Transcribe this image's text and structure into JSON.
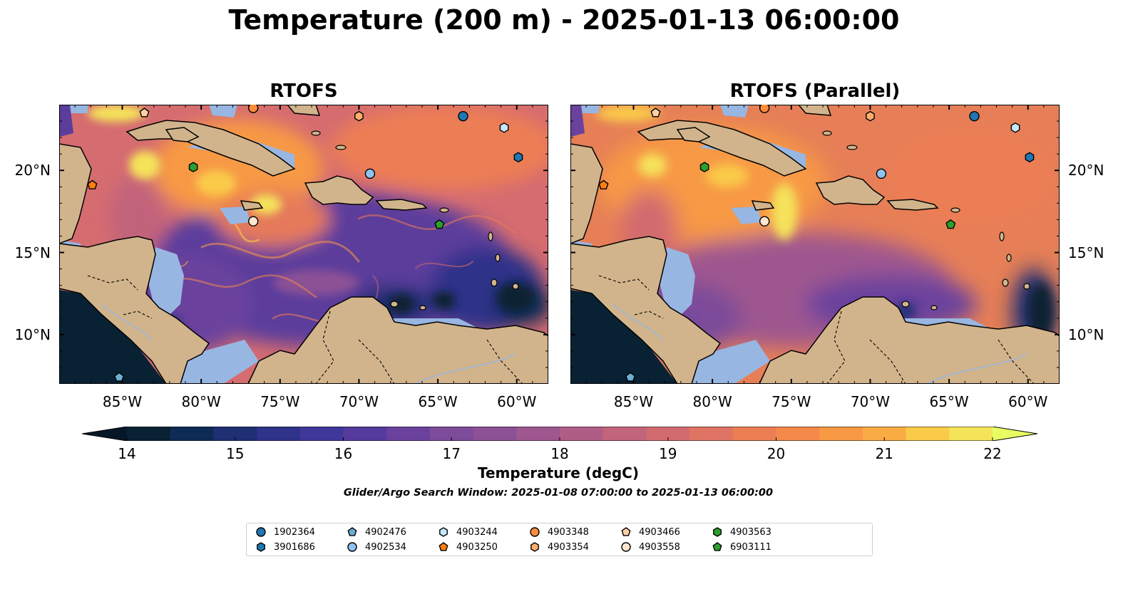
{
  "title": "Temperature (200 m) - 2025-01-13 06:00:00",
  "panels": [
    {
      "title": "RTOFS"
    },
    {
      "title": "RTOFS (Parallel)"
    }
  ],
  "axes": {
    "lon_labels": [
      "85°W",
      "80°W",
      "75°W",
      "70°W",
      "65°W",
      "60°W"
    ],
    "lat_labels": [
      "20°N",
      "15°N",
      "10°N"
    ],
    "lon_range": [
      -89,
      -58
    ],
    "lat_range": [
      7,
      24
    ]
  },
  "colorbar": {
    "label": "Temperature (degC)",
    "ticks": [
      "14",
      "15",
      "16",
      "17",
      "18",
      "19",
      "20",
      "21",
      "22"
    ],
    "range": [
      14,
      22
    ],
    "extend": "both",
    "colors": [
      "#082233",
      "#0e2b55",
      "#1e2f73",
      "#2f3389",
      "#40379a",
      "#553b9d",
      "#6a429d",
      "#7c4b9a",
      "#8c5195",
      "#9e578f",
      "#b05d86",
      "#c2647c",
      "#d26b70",
      "#df7464",
      "#ec7e54",
      "#f4894a",
      "#f79945",
      "#f9ac44",
      "#facb48",
      "#f5e35a"
    ],
    "under_color": "#061828",
    "over_color": "#e9fc63"
  },
  "search_window": "Glider/Argo Search Window: 2025-01-08 07:00:00 to 2025-01-13 06:00:00",
  "colors": {
    "ocean_default": "#e67f57",
    "land": "#d2b48c",
    "shelf": "#98b6e2",
    "deep_teal": "#082233"
  },
  "platforms": [
    {
      "id": "1902364",
      "marker": "circle",
      "color": "#1f77b4",
      "lon": -63.4,
      "lat": 23.3
    },
    {
      "id": "3901686",
      "marker": "hexagon",
      "color": "#1f77b4",
      "lon": -59.9,
      "lat": 20.8
    },
    {
      "id": "4902476",
      "marker": "pentagon",
      "color": "#6baed6",
      "lon": -85.2,
      "lat": 7.4
    },
    {
      "id": "4902534",
      "marker": "circle",
      "color": "#8fc2ef",
      "lon": -69.3,
      "lat": 19.8
    },
    {
      "id": "4903244",
      "marker": "hexagon",
      "color": "#c6e9ff",
      "lon": -60.8,
      "lat": 22.6
    },
    {
      "id": "4903250",
      "marker": "pentagon",
      "color": "#ff7f0e",
      "lon": -86.9,
      "lat": 19.1
    },
    {
      "id": "4903348",
      "marker": "circle",
      "color": "#fd8d3c",
      "lon": -76.7,
      "lat": 23.8
    },
    {
      "id": "4903354",
      "marker": "hexagon",
      "color": "#fdae6b",
      "lon": -70.0,
      "lat": 23.3
    },
    {
      "id": "4903466",
      "marker": "pentagon",
      "color": "#fdd0a2",
      "lon": -83.6,
      "lat": 23.5
    },
    {
      "id": "4903558",
      "marker": "circle",
      "color": "#fee6ce",
      "lon": -76.7,
      "lat": 16.9
    },
    {
      "id": "4903563",
      "marker": "hexagon",
      "color": "#2ca02c",
      "lon": -80.5,
      "lat": 20.2
    },
    {
      "id": "6903111",
      "marker": "pentagon",
      "color": "#2ca02c",
      "lon": -64.9,
      "lat": 16.7
    }
  ]
}
